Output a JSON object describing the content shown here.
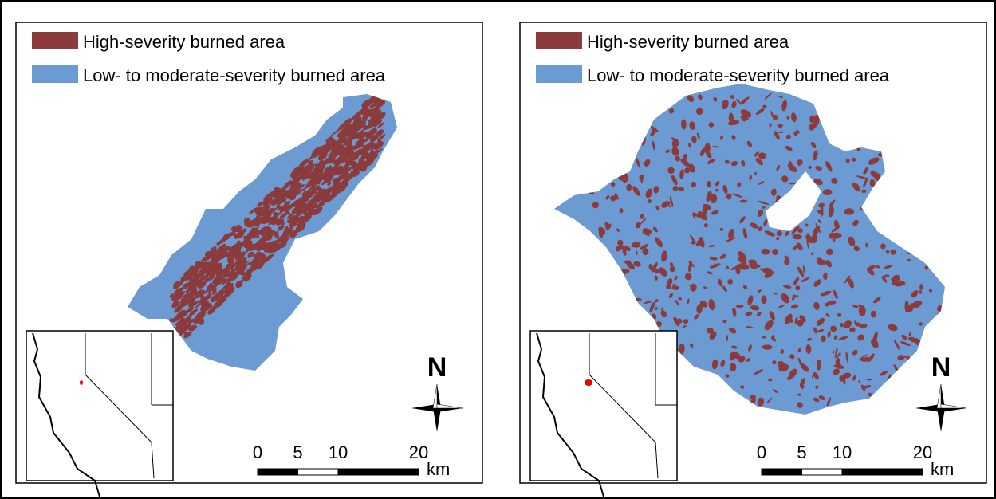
{
  "panels": [
    {
      "legend": [
        {
          "label": "High-severity burned area",
          "color": "#8b3b3b"
        },
        {
          "label": "Low- to moderate-severity burned area",
          "color": "#6b9bd2"
        }
      ],
      "north": "N",
      "scale": {
        "ticks": [
          0,
          5,
          10,
          20
        ],
        "unit": "km"
      }
    },
    {
      "legend": [
        {
          "label": "High-severity burned area",
          "color": "#8b3b3b"
        },
        {
          "label": "Low- to moderate-severity burned area",
          "color": "#6b9bd2"
        }
      ],
      "north": "N",
      "scale": {
        "ticks": [
          0,
          5,
          10,
          20
        ],
        "unit": "km"
      }
    }
  ]
}
